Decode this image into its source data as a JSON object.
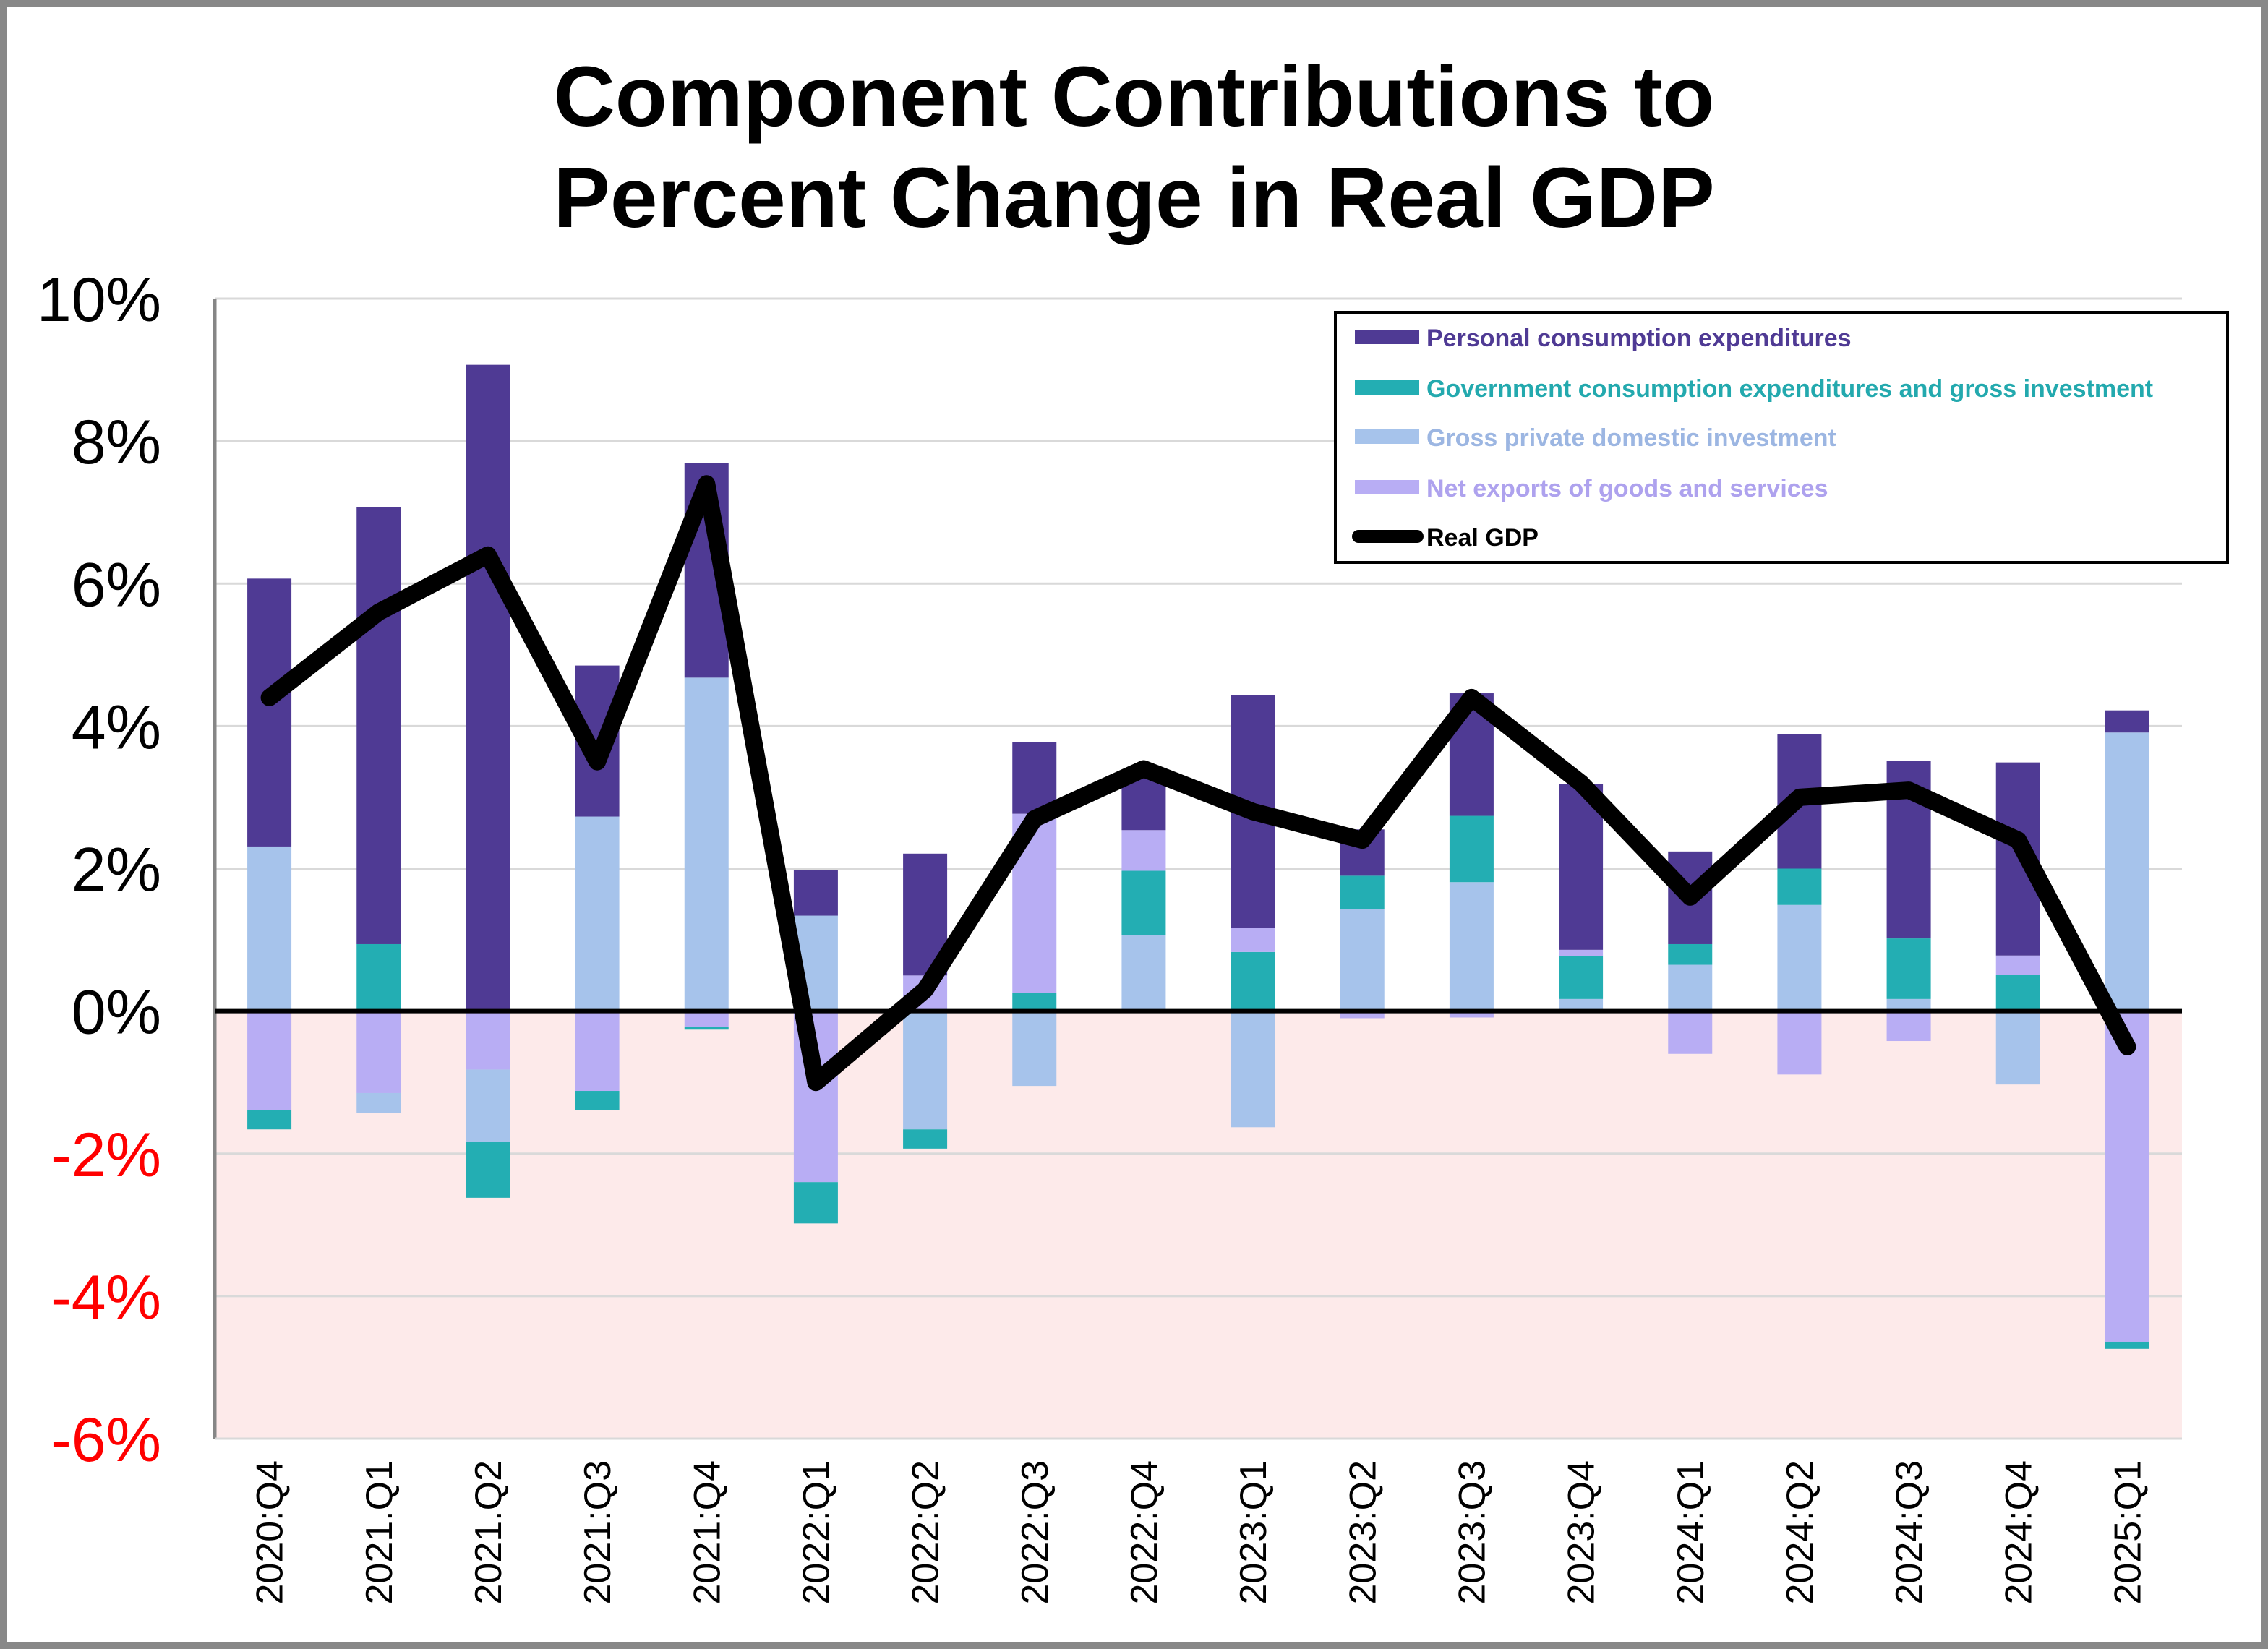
{
  "title": {
    "line1": "Component Contributions to",
    "line2": "Percent Change in Real GDP"
  },
  "colors": {
    "pce": "#4f3a94",
    "gov": "#23aeb3",
    "gpdi": "#a6c3eb",
    "nx": "#b8adf4",
    "gdp": "#000000",
    "negative_region": "#fdeaea",
    "positive_tick": "#000000",
    "negative_tick": "#ff0000",
    "legend_text_pce": "#4f3a94",
    "legend_text_gov": "#23a9ae",
    "legend_text_gpdi": "#9cb6e2",
    "legend_text_nx": "#ad a2ee",
    "legend_text_gdp": "#000000"
  },
  "chart_data": {
    "type": "bar",
    "stacked": true,
    "title": "Component Contributions to Percent Change in Real GDP",
    "xlabel": "",
    "ylabel": "",
    "ylim": [
      -6,
      10
    ],
    "yticks": [
      10,
      8,
      6,
      4,
      2,
      0,
      -2,
      -4,
      -6
    ],
    "ytick_labels": [
      "10%",
      "8%",
      "6%",
      "4%",
      "2%",
      "0%",
      "-2%",
      "-4%",
      "-6%"
    ],
    "grid": true,
    "negative_region_shaded": true,
    "legend_position": "top-right",
    "categories": [
      "2020:Q4",
      "2021.Q1",
      "2021.Q2",
      "2021:Q3",
      "2021:Q4",
      "2022:Q1",
      "2022:Q2",
      "2022:Q3",
      "2022:Q4",
      "2023:Q1",
      "2023:Q2",
      "2023:Q3",
      "2023:Q4",
      "2024:Q1",
      "2024:Q2",
      "2024:Q3",
      "2024:Q4",
      "2025:Q1"
    ],
    "series": [
      {
        "key": "pce",
        "name": "Personal consumption expenditures",
        "type": "bar",
        "values": [
          3.76,
          6.13,
          9.07,
          2.12,
          3.01,
          0.64,
          1.71,
          1.01,
          0.85,
          3.27,
          0.65,
          1.72,
          2.33,
          1.3,
          1.89,
          2.49,
          2.71,
          0.31
        ]
      },
      {
        "key": "gov",
        "name": "Government consumption expenditures and gross investment",
        "type": "bar",
        "values": [
          -0.27,
          0.94,
          -0.78,
          -0.27,
          -0.04,
          -0.58,
          -0.27,
          0.26,
          0.9,
          0.83,
          0.47,
          0.93,
          0.6,
          0.29,
          0.51,
          0.85,
          0.51,
          -0.1
        ]
      },
      {
        "key": "gpdi",
        "name": "Gross private domestic investment",
        "type": "bar",
        "values": [
          2.31,
          -0.28,
          -1.02,
          2.73,
          4.68,
          1.34,
          -1.66,
          -1.05,
          1.07,
          -1.63,
          1.43,
          1.81,
          0.17,
          0.65,
          1.49,
          0.17,
          -1.03,
          3.91
        ]
      },
      {
        "key": "nx",
        "name": "Net exports of goods and services",
        "type": "bar",
        "values": [
          -1.39,
          -1.15,
          -0.82,
          -1.12,
          -0.22,
          -2.4,
          0.5,
          2.51,
          0.57,
          0.34,
          -0.1,
          -0.09,
          0.09,
          -0.6,
          -0.89,
          -0.42,
          0.27,
          -4.64
        ]
      },
      {
        "key": "gdp",
        "name": "Real GDP",
        "type": "line",
        "values": [
          4.4,
          5.6,
          6.4,
          3.5,
          7.4,
          -1.0,
          0.3,
          2.7,
          3.4,
          2.8,
          2.4,
          4.4,
          3.2,
          1.6,
          3.0,
          3.1,
          2.4,
          -0.5
        ]
      }
    ],
    "stack_order_positive": [
      "gpdi",
      "gov",
      "nx",
      "pce"
    ],
    "stack_order_negative": [
      "nx",
      "gpdi",
      "gov"
    ]
  },
  "legend": {
    "items": [
      {
        "key": "pce",
        "label": "Personal consumption expenditures"
      },
      {
        "key": "gov",
        "label": "Government consumption expenditures and gross investment"
      },
      {
        "key": "gpdi",
        "label": "Gross private domestic investment"
      },
      {
        "key": "nx",
        "label": "Net exports of goods and services"
      },
      {
        "key": "gdp",
        "label": "Real GDP"
      }
    ]
  }
}
